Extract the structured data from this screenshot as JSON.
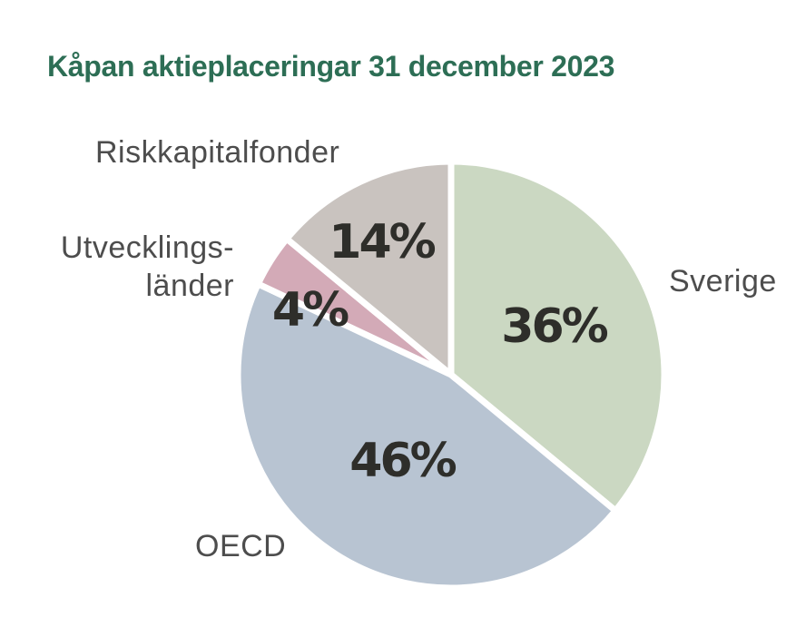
{
  "page": {
    "background": "#ffffff"
  },
  "header": {
    "title": "Kåpan aktieplaceringar 31 december 2023",
    "title_color": "#2d6e55"
  },
  "chart_data": {
    "type": "pie",
    "title": "Kåpan aktieplaceringar 31 december 2023",
    "value_unit": "percent",
    "total": 100,
    "start_angle_deg": -90,
    "direction": "clockwise",
    "separator_color": "#ffffff",
    "label_text_color": "#4d4d4d",
    "pct_text_color": "#2e2e2a",
    "slices": [
      {
        "id": "sverige",
        "label": "Sverige",
        "value": 36,
        "pct_label": "36%",
        "color": "#cbd8c2"
      },
      {
        "id": "oecd",
        "label": "OECD",
        "value": 46,
        "pct_label": "46%",
        "color": "#b8c4d2"
      },
      {
        "id": "utvecklingslander",
        "label": "Utvecklingsländer",
        "label_line1": "Utvecklings-",
        "label_line2": "länder",
        "value": 4,
        "pct_label": "4%",
        "color": "#d3aab7"
      },
      {
        "id": "riskkapitalfonder",
        "label": "Riskkapitalfonder",
        "value": 14,
        "pct_label": "14%",
        "color": "#c9c3bf"
      }
    ]
  }
}
